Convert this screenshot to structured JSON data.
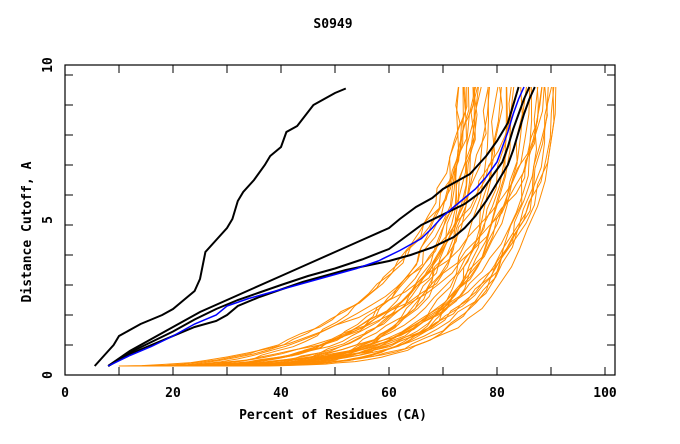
{
  "chart_data": {
    "type": "line",
    "title": "S0949",
    "xlabel": "Percent of Residues (CA)",
    "ylabel": "Distance Cutoff, A",
    "xlim": [
      0,
      100
    ],
    "ylim": [
      0,
      10
    ],
    "x_ticks": [
      "0",
      "20",
      "40",
      "60",
      "80",
      "100"
    ],
    "y_ticks": [
      "0",
      "5",
      "10"
    ],
    "grid": false,
    "colors": {
      "orange": "#ff8c00",
      "black": "#000000",
      "blue": "#0000ff"
    },
    "highlighted_series": [
      {
        "name": "black-1",
        "color": "black",
        "points": [
          [
            5.5,
            0.3
          ],
          [
            7,
            0.6
          ],
          [
            8,
            0.8
          ],
          [
            9,
            1.0
          ],
          [
            10,
            1.3
          ],
          [
            12,
            1.5
          ],
          [
            14,
            1.7
          ],
          [
            16,
            1.85
          ],
          [
            18,
            2.0
          ],
          [
            20,
            2.2
          ],
          [
            22,
            2.5
          ],
          [
            24,
            2.8
          ],
          [
            25,
            3.2
          ],
          [
            26,
            4.1
          ],
          [
            28,
            4.5
          ],
          [
            30,
            4.9
          ],
          [
            31,
            5.2
          ],
          [
            32,
            5.8
          ],
          [
            33,
            6.1
          ],
          [
            35,
            6.5
          ],
          [
            37,
            7.0
          ],
          [
            38,
            7.3
          ],
          [
            40,
            7.6
          ],
          [
            41,
            8.1
          ],
          [
            43,
            8.3
          ],
          [
            46,
            9.0
          ],
          [
            48,
            9.2
          ],
          [
            50,
            9.4
          ],
          [
            52,
            9.55
          ]
        ]
      },
      {
        "name": "black-2",
        "color": "black",
        "points": [
          [
            8,
            0.3
          ],
          [
            12,
            0.8
          ],
          [
            16,
            1.2
          ],
          [
            20,
            1.6
          ],
          [
            25,
            2.1
          ],
          [
            30,
            2.5
          ],
          [
            35,
            2.9
          ],
          [
            40,
            3.3
          ],
          [
            45,
            3.7
          ],
          [
            50,
            4.1
          ],
          [
            55,
            4.5
          ],
          [
            60,
            4.9
          ],
          [
            62,
            5.2
          ],
          [
            65,
            5.6
          ],
          [
            68,
            5.9
          ],
          [
            70,
            6.2
          ],
          [
            75,
            6.7
          ],
          [
            78,
            7.3
          ],
          [
            80,
            7.8
          ],
          [
            82,
            8.4
          ],
          [
            83,
            9.0
          ],
          [
            84,
            9.6
          ]
        ]
      },
      {
        "name": "black-3",
        "color": "black",
        "points": [
          [
            8,
            0.3
          ],
          [
            12,
            0.7
          ],
          [
            16,
            1.0
          ],
          [
            20,
            1.3
          ],
          [
            24,
            1.6
          ],
          [
            28,
            1.8
          ],
          [
            30,
            2.0
          ],
          [
            32,
            2.3
          ],
          [
            36,
            2.6
          ],
          [
            40,
            2.85
          ],
          [
            44,
            3.1
          ],
          [
            48,
            3.3
          ],
          [
            52,
            3.5
          ],
          [
            56,
            3.65
          ],
          [
            60,
            3.8
          ],
          [
            64,
            4.0
          ],
          [
            68,
            4.25
          ],
          [
            72,
            4.6
          ],
          [
            74,
            4.9
          ],
          [
            76,
            5.3
          ],
          [
            78,
            5.8
          ],
          [
            80,
            6.4
          ],
          [
            82,
            7.0
          ],
          [
            83,
            7.5
          ],
          [
            84,
            8.1
          ],
          [
            85,
            8.7
          ],
          [
            86,
            9.2
          ],
          [
            87,
            9.6
          ]
        ]
      },
      {
        "name": "black-4",
        "color": "black",
        "points": [
          [
            8,
            0.3
          ],
          [
            12,
            0.75
          ],
          [
            16,
            1.1
          ],
          [
            20,
            1.45
          ],
          [
            24,
            1.85
          ],
          [
            28,
            2.2
          ],
          [
            32,
            2.5
          ],
          [
            36,
            2.75
          ],
          [
            40,
            3.0
          ],
          [
            45,
            3.3
          ],
          [
            50,
            3.55
          ],
          [
            55,
            3.85
          ],
          [
            60,
            4.2
          ],
          [
            63,
            4.6
          ],
          [
            66,
            5.0
          ],
          [
            70,
            5.35
          ],
          [
            74,
            5.7
          ],
          [
            77,
            6.1
          ],
          [
            79,
            6.6
          ],
          [
            81,
            7.1
          ],
          [
            82,
            7.6
          ],
          [
            83,
            8.2
          ],
          [
            84,
            8.7
          ],
          [
            85,
            9.2
          ],
          [
            86,
            9.6
          ]
        ]
      },
      {
        "name": "blue",
        "color": "blue",
        "points": [
          [
            8,
            0.3
          ],
          [
            12,
            0.65
          ],
          [
            16,
            0.95
          ],
          [
            20,
            1.3
          ],
          [
            24,
            1.7
          ],
          [
            28,
            2.0
          ],
          [
            30,
            2.3
          ],
          [
            34,
            2.55
          ],
          [
            38,
            2.75
          ],
          [
            42,
            2.95
          ],
          [
            46,
            3.15
          ],
          [
            50,
            3.35
          ],
          [
            54,
            3.55
          ],
          [
            58,
            3.8
          ],
          [
            62,
            4.15
          ],
          [
            66,
            4.55
          ],
          [
            68,
            4.9
          ],
          [
            70,
            5.3
          ],
          [
            73,
            5.75
          ],
          [
            76,
            6.2
          ],
          [
            78,
            6.6
          ],
          [
            80,
            7.1
          ],
          [
            81,
            7.6
          ],
          [
            82,
            8.1
          ],
          [
            83,
            8.7
          ],
          [
            84,
            9.2
          ],
          [
            85,
            9.6
          ]
        ]
      }
    ],
    "orange_series_count": 40,
    "orange_series_description": "many model curves; x at cutoff 0.3 between ~10 and ~24, curving up to cutoff ~9.6 at x between ~72 and ~91"
  }
}
